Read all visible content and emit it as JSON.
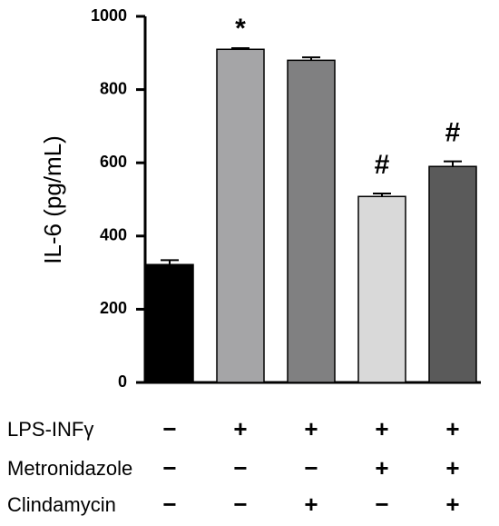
{
  "chart_data": {
    "type": "bar",
    "title": "",
    "xlabel": "",
    "ylabel": "IL-6 (pg/mL)",
    "ylim": [
      0,
      1000
    ],
    "yticks": [
      "0",
      "200",
      "400",
      "600",
      "800",
      "1000"
    ],
    "ytick_values": [
      0,
      200,
      400,
      600,
      800,
      1000
    ],
    "grid": false,
    "series": [
      {
        "values": [
          322,
          910,
          880,
          508,
          590
        ],
        "errors": [
          12,
          3,
          8,
          8,
          14
        ],
        "colors": [
          "#000000",
          "#a5a5a7",
          "#808081",
          "#d9d9d9",
          "#5a5a5a"
        ],
        "annotations": [
          "",
          "*",
          "",
          "#",
          "#"
        ]
      }
    ],
    "treatment_table": [
      {
        "label": "LPS-INFγ",
        "signs": [
          "−",
          "+",
          "+",
          "+",
          "+"
        ]
      },
      {
        "label": "Metronidazole",
        "signs": [
          "−",
          "−",
          "−",
          "+",
          "+"
        ]
      },
      {
        "label": "Clindamycin",
        "signs": [
          "−",
          "−",
          "+",
          "−",
          "+"
        ]
      }
    ]
  }
}
